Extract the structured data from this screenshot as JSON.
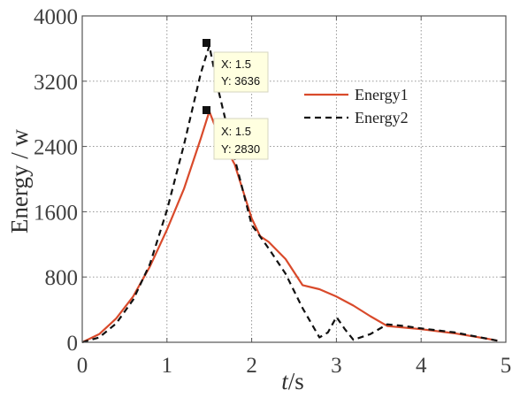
{
  "chart_data": {
    "type": "line",
    "title": "",
    "xlabel": "t/s",
    "xlabel_italic": "t",
    "xlabel_rest": "/s",
    "ylabel": "Energy / w",
    "xlim": [
      0,
      5
    ],
    "ylim": [
      0,
      4000
    ],
    "x_ticks": [
      0,
      1,
      2,
      3,
      4,
      5
    ],
    "x_tick_labels": [
      "0",
      "1",
      "2",
      "3",
      "4",
      "5"
    ],
    "y_ticks": [
      0,
      800,
      1600,
      2400,
      3200,
      4000
    ],
    "y_tick_labels": [
      "0",
      "800",
      "1600",
      "2400",
      "3200",
      "4000"
    ],
    "grid": true,
    "legend_position": "upper-right",
    "series": [
      {
        "name": "Energy1",
        "color": "#d94a2b",
        "style": "solid",
        "x": [
          0,
          0.2,
          0.4,
          0.6,
          0.8,
          1.0,
          1.2,
          1.4,
          1.5,
          1.6,
          1.8,
          2.0,
          2.1,
          2.2,
          2.4,
          2.6,
          2.8,
          3.0,
          3.2,
          3.4,
          3.6,
          4.0,
          4.4,
          4.8,
          4.9
        ],
        "y": [
          0,
          100,
          290,
          560,
          930,
          1380,
          1880,
          2500,
          2830,
          2560,
          2180,
          1520,
          1300,
          1230,
          1020,
          700,
          650,
          560,
          450,
          320,
          200,
          160,
          110,
          40,
          20
        ]
      },
      {
        "name": "Energy2",
        "color": "#111111",
        "style": "dashed",
        "x": [
          0,
          0.2,
          0.4,
          0.6,
          0.8,
          1.0,
          1.2,
          1.4,
          1.5,
          1.6,
          1.8,
          2.0,
          2.2,
          2.4,
          2.6,
          2.8,
          2.9,
          3.0,
          3.1,
          3.2,
          3.4,
          3.6,
          3.8,
          4.0,
          4.4,
          4.8,
          4.9
        ],
        "y": [
          0,
          60,
          230,
          520,
          960,
          1620,
          2420,
          3300,
          3636,
          3120,
          2250,
          1440,
          1150,
          840,
          420,
          60,
          120,
          310,
          160,
          30,
          100,
          220,
          200,
          170,
          120,
          40,
          20
        ]
      }
    ],
    "annotations": [
      {
        "series": "Energy2",
        "x": 1.5,
        "y": 3636,
        "x_text": "X: 1.5",
        "y_text": "Y: 3636"
      },
      {
        "series": "Energy1",
        "x": 1.5,
        "y": 2830,
        "x_text": "X: 1.5",
        "y_text": "Y: 2830"
      }
    ]
  }
}
